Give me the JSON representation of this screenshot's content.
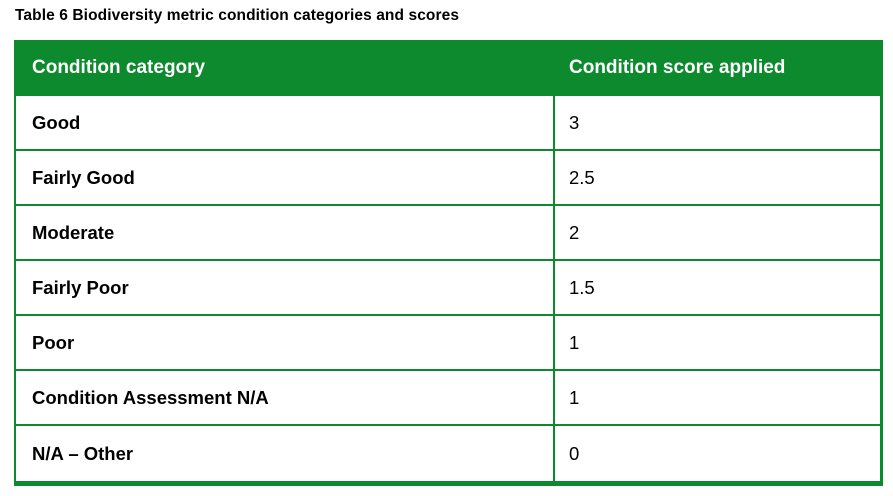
{
  "caption": "Table 6 Biodiversity metric condition categories and scores",
  "table": {
    "columns": {
      "category_header": "Condition category",
      "score_header": "Condition score applied"
    },
    "rows": [
      {
        "category": "Good",
        "score": "3"
      },
      {
        "category": "Fairly Good",
        "score": "2.5"
      },
      {
        "category": "Moderate",
        "score": "2"
      },
      {
        "category": "Fairly Poor",
        "score": "1.5"
      },
      {
        "category": "Poor",
        "score": "1"
      },
      {
        "category": "Condition Assessment N/A",
        "score": "1"
      },
      {
        "category": "N/A – Other",
        "score": "0"
      }
    ],
    "colors": {
      "green": "#0e8a2e",
      "header_text": "#ffffff",
      "cell_text": "#000000",
      "background": "#ffffff"
    }
  }
}
